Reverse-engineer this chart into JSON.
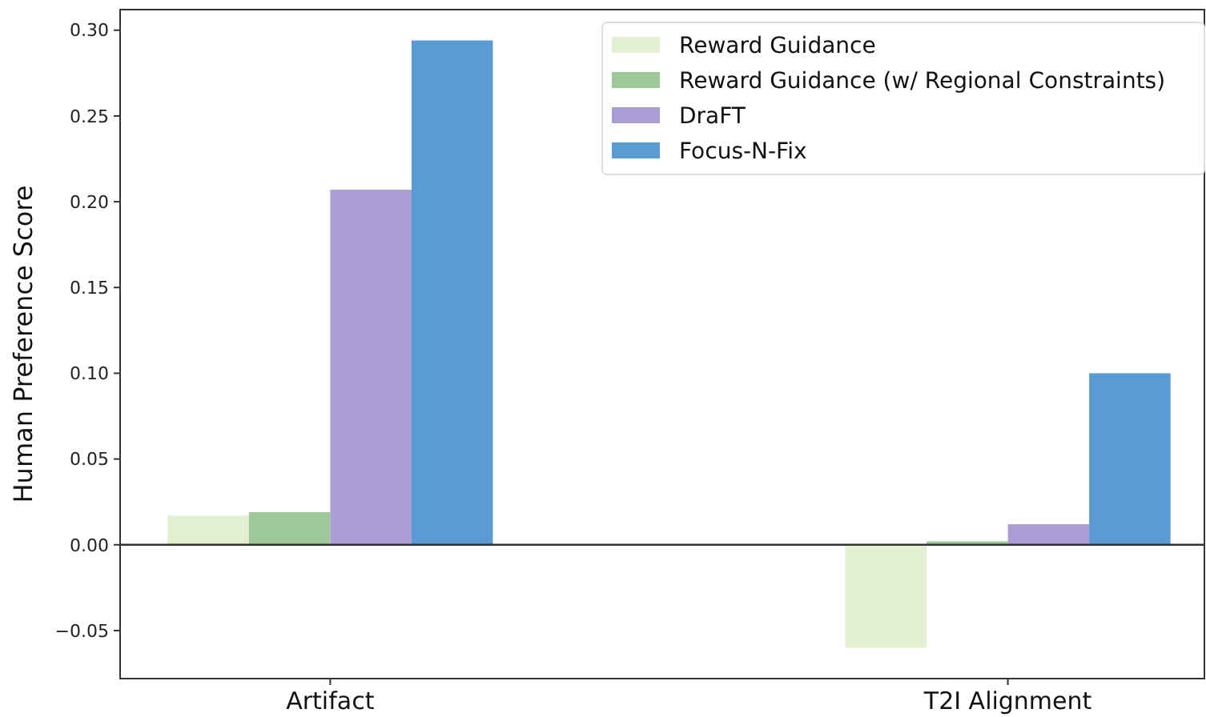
{
  "chart_data": {
    "type": "bar",
    "ylabel": "Human Preference Score",
    "categories": [
      "Artifact",
      "T2I Alignment"
    ],
    "series": [
      {
        "name": "Reward Guidance",
        "color": "#e2efd0",
        "values": [
          0.017,
          -0.06
        ]
      },
      {
        "name": "Reward Guidance (w/ Regional Constraints)",
        "color": "#9dc89a",
        "values": [
          0.019,
          0.002
        ]
      },
      {
        "name": "DraFT",
        "color": "#ab9ed5",
        "values": [
          0.207,
          0.012
        ]
      },
      {
        "name": "Focus-N-Fix",
        "color": "#5b9bd5",
        "values": [
          0.294,
          0.1
        ]
      }
    ],
    "ylim": [
      -0.078,
      0.312
    ],
    "yticks": [
      {
        "value": -0.05,
        "label": "−0.05"
      },
      {
        "value": 0,
        "label": "0.00"
      },
      {
        "value": 0.05,
        "label": "0.05"
      },
      {
        "value": 0.1,
        "label": "0.10"
      },
      {
        "value": 0.15,
        "label": "0.15"
      },
      {
        "value": 0.2,
        "label": "0.20"
      },
      {
        "value": 0.25,
        "label": "0.25"
      },
      {
        "value": 0.3,
        "label": "0.30"
      }
    ],
    "ref_lines": [
      {
        "axis": "y",
        "value": 0,
        "color": "#333333"
      }
    ],
    "grid": false,
    "legend": "top right"
  }
}
